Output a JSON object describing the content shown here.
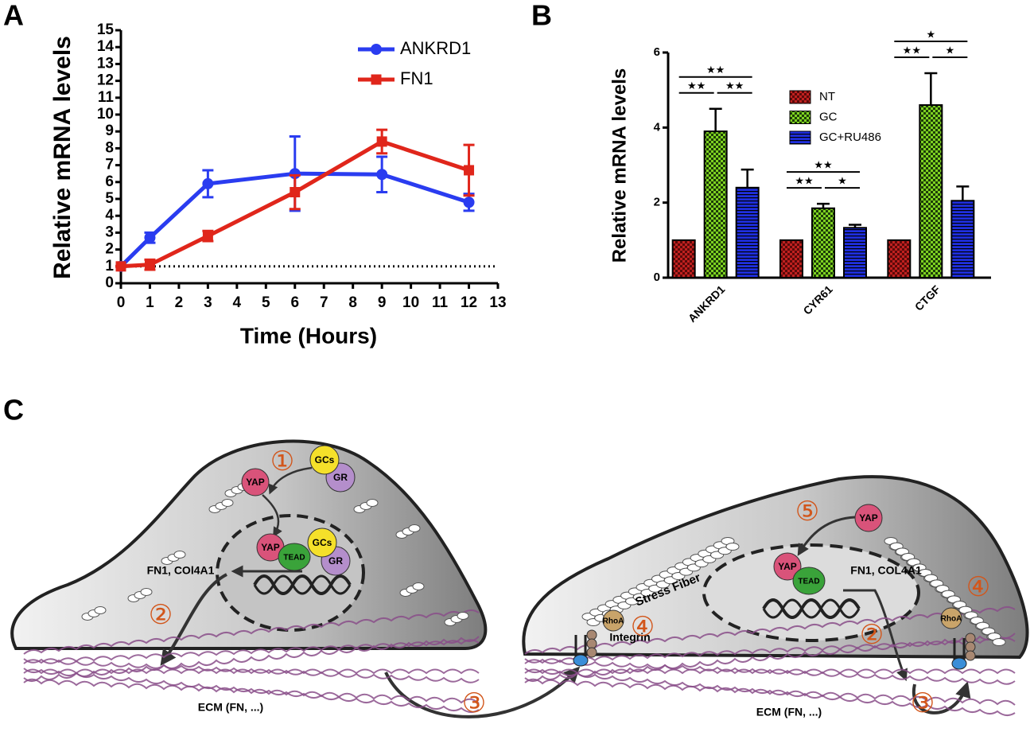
{
  "panels": [
    "A",
    "B",
    "C"
  ],
  "chart_data": [
    {
      "type": "line",
      "x": [
        0,
        1,
        3,
        6,
        9,
        12
      ],
      "xlabel": "Time (Hours)",
      "ylabel": "Relative mRNA levels",
      "xlim": [
        0,
        13
      ],
      "xticks": [
        0,
        1,
        2,
        3,
        4,
        5,
        6,
        7,
        8,
        9,
        10,
        11,
        12,
        13
      ],
      "ylim": [
        0,
        15
      ],
      "yticks": [
        0,
        1,
        2,
        3,
        4,
        5,
        6,
        7,
        8,
        9,
        10,
        11,
        12,
        13,
        14,
        15
      ],
      "reference_line": 1,
      "series": [
        {
          "name": "ANKRD1",
          "color": "#2a3cf0",
          "values": [
            1,
            2.7,
            5.9,
            6.5,
            6.45,
            4.8
          ],
          "errors": [
            0,
            0.3,
            0.8,
            2.2,
            1.05,
            0.5
          ]
        },
        {
          "name": "FN1",
          "color": "#e0261b",
          "values": [
            1,
            1.1,
            2.8,
            5.4,
            8.4,
            6.7
          ],
          "errors": [
            0,
            0.3,
            0.3,
            1.0,
            0.7,
            1.5
          ]
        }
      ]
    },
    {
      "type": "bar",
      "categories": [
        "ANKRD1",
        "CYR61",
        "CTGF"
      ],
      "ylabel": "Relative mRNA levels",
      "ylim": [
        0,
        6
      ],
      "yticks": [
        0,
        2,
        4,
        6
      ],
      "series": [
        {
          "name": "NT",
          "color": "#c0201f",
          "values": [
            1,
            1,
            1
          ]
        },
        {
          "name": "GC",
          "color": "#7ed321",
          "values": [
            3.9,
            1.85,
            4.6
          ],
          "errors": [
            0.6,
            0.12,
            0.85
          ]
        },
        {
          "name": "GC+RU486",
          "color": "#1f2fe0",
          "values": [
            2.4,
            1.33,
            2.05
          ],
          "errors": [
            0.48,
            0.08,
            0.38
          ]
        }
      ],
      "significance": [
        [
          "★★",
          "★★",
          "★★"
        ],
        [
          "★★",
          "★★",
          "★"
        ],
        [
          "★",
          "★★",
          "★"
        ]
      ]
    }
  ],
  "diagram": {
    "texts": [
      "①",
      "GCs",
      "GR",
      "YAP",
      "YAP",
      "TEAD",
      "GCs",
      "GR",
      "FN1, COl4A1",
      "②",
      "ECM (FN, ...)",
      "③",
      "⑤",
      "YAP",
      "YAP",
      "TEAD",
      "FN1, COL4A1",
      "Stress Fiber",
      "RhoA",
      "Integrin",
      "④",
      "②",
      "④",
      "RhoA",
      "ECM (FN, ...)",
      "③"
    ]
  }
}
